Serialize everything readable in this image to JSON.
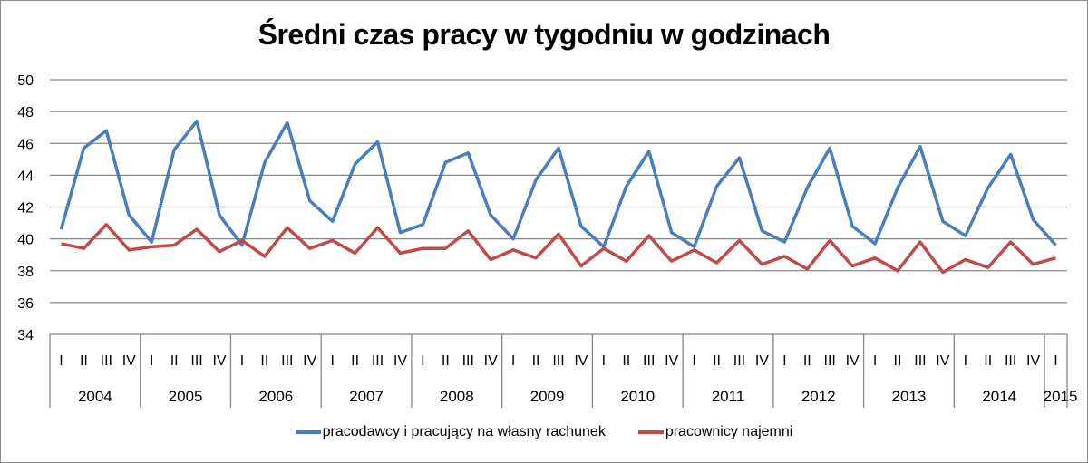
{
  "chart_data": {
    "type": "line",
    "title": "Średni czas pracy w tygodniu w godzinach",
    "xlabel": "",
    "ylabel": "",
    "ylim": [
      34,
      50
    ],
    "yticks": [
      34,
      36,
      38,
      40,
      42,
      44,
      46,
      48,
      50
    ],
    "grid": true,
    "legend_position": "bottom",
    "years": [
      {
        "label": "2004",
        "quarters": [
          "I",
          "II",
          "III",
          "IV"
        ]
      },
      {
        "label": "2005",
        "quarters": [
          "I",
          "II",
          "III",
          "IV"
        ]
      },
      {
        "label": "2006",
        "quarters": [
          "I",
          "II",
          "III",
          "IV"
        ]
      },
      {
        "label": "2007",
        "quarters": [
          "I",
          "II",
          "III",
          "IV"
        ]
      },
      {
        "label": "2008",
        "quarters": [
          "I",
          "II",
          "III",
          "IV"
        ]
      },
      {
        "label": "2009",
        "quarters": [
          "I",
          "II",
          "III",
          "IV"
        ]
      },
      {
        "label": "2010",
        "quarters": [
          "I",
          "II",
          "III",
          "IV"
        ]
      },
      {
        "label": "2011",
        "quarters": [
          "I",
          "II",
          "III",
          "IV"
        ]
      },
      {
        "label": "2012",
        "quarters": [
          "I",
          "II",
          "III",
          "IV"
        ]
      },
      {
        "label": "2013",
        "quarters": [
          "I",
          "II",
          "III",
          "IV"
        ]
      },
      {
        "label": "2014",
        "quarters": [
          "I",
          "II",
          "III",
          "IV"
        ]
      },
      {
        "label": "2015",
        "quarters": [
          "I"
        ]
      }
    ],
    "categories": [
      "2004 I",
      "2004 II",
      "2004 III",
      "2004 IV",
      "2005 I",
      "2005 II",
      "2005 III",
      "2005 IV",
      "2006 I",
      "2006 II",
      "2006 III",
      "2006 IV",
      "2007 I",
      "2007 II",
      "2007 III",
      "2007 IV",
      "2008 I",
      "2008 II",
      "2008 III",
      "2008 IV",
      "2009 I",
      "2009 II",
      "2009 III",
      "2009 IV",
      "2010 I",
      "2010 II",
      "2010 III",
      "2010 IV",
      "2011 I",
      "2011 II",
      "2011 III",
      "2011 IV",
      "2012 I",
      "2012 II",
      "2012 III",
      "2012 IV",
      "2013 I",
      "2013 II",
      "2013 III",
      "2013 IV",
      "2014 I",
      "2014 II",
      "2014 III",
      "2014 IV",
      "2015 I"
    ],
    "series": [
      {
        "name": "pracodawcy i pracujący na własny rachunek",
        "color": "#4a7ebb",
        "values": [
          40.6,
          45.7,
          46.8,
          41.5,
          39.8,
          45.6,
          47.4,
          41.5,
          39.6,
          44.8,
          47.3,
          42.4,
          41.1,
          44.7,
          46.1,
          40.4,
          40.9,
          44.8,
          45.4,
          41.5,
          40.0,
          43.7,
          45.7,
          40.8,
          39.5,
          43.3,
          45.5,
          40.4,
          39.5,
          43.3,
          45.1,
          40.5,
          39.8,
          43.2,
          45.7,
          40.8,
          39.7,
          43.2,
          45.8,
          41.1,
          40.2,
          43.2,
          45.3,
          41.2,
          39.6
        ]
      },
      {
        "name": "pracownicy najemni",
        "color": "#be4b48",
        "values": [
          39.7,
          39.4,
          40.9,
          39.3,
          39.5,
          39.6,
          40.6,
          39.2,
          39.9,
          38.9,
          40.7,
          39.4,
          39.9,
          39.1,
          40.7,
          39.1,
          39.4,
          39.4,
          40.5,
          38.7,
          39.3,
          38.8,
          40.3,
          38.3,
          39.4,
          38.6,
          40.2,
          38.6,
          39.3,
          38.5,
          39.9,
          38.4,
          38.9,
          38.1,
          39.9,
          38.3,
          38.8,
          38.0,
          39.8,
          37.9,
          38.7,
          38.2,
          39.8,
          38.4,
          38.8
        ]
      }
    ]
  },
  "legend": {
    "items": [
      {
        "label": "pracodawcy i pracujący na własny rachunek",
        "color": "#4a7ebb"
      },
      {
        "label": "pracownicy najemni",
        "color": "#be4b48"
      }
    ]
  }
}
